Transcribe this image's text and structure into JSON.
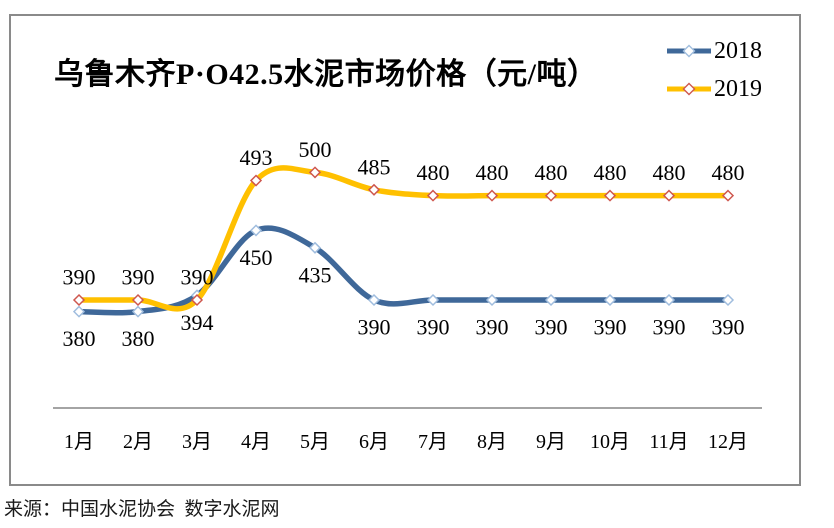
{
  "title": "乌鲁木齐P·O42.5水泥市场价格（元/吨）",
  "source": "来源：中国水泥协会  数字水泥网",
  "colors": {
    "series_2018": "#3F6899",
    "series_2018_marker": "#A0BDDE",
    "series_2019": "#FFC000",
    "series_2019_marker": "#CE574E",
    "axis": "#6e6e6e",
    "frame_border": "#8a8a8a",
    "text": "#000000"
  },
  "chart_data": {
    "type": "line",
    "title": "乌鲁木齐P·O42.5水泥市场价格（元/吨）",
    "categories": [
      "1月",
      "2月",
      "3月",
      "4月",
      "5月",
      "6月",
      "7月",
      "8月",
      "9月",
      "10月",
      "11月",
      "12月"
    ],
    "series": [
      {
        "name": "2018",
        "color": "#3F6899",
        "marker_color": "#A0BDDE",
        "marker": "diamond",
        "label_position": "below",
        "values": [
          380,
          380,
          394,
          450,
          435,
          390,
          390,
          390,
          390,
          390,
          390,
          390
        ]
      },
      {
        "name": "2019",
        "color": "#FFC000",
        "marker_color": "#CE574E",
        "marker": "diamond",
        "label_position": "above",
        "values": [
          390,
          390,
          390,
          493,
          500,
          485,
          480,
          480,
          480,
          480,
          480,
          480
        ]
      }
    ],
    "xlabel": "",
    "ylabel": "",
    "y_axis_visible": false,
    "grid": false,
    "smooth": true,
    "data_labels": true,
    "legend_position": "top-right"
  }
}
